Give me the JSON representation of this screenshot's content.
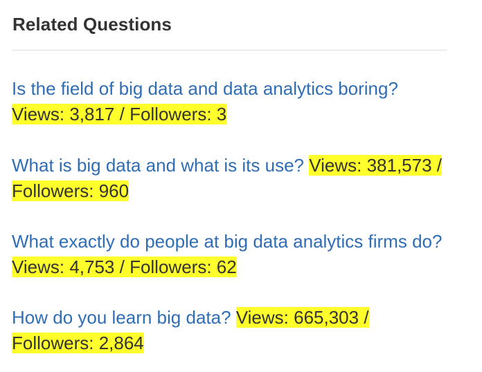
{
  "section": {
    "title": "Related Questions"
  },
  "questions": [
    {
      "title": "Is the field of big data and data analytics boring?",
      "stats": "Views: 3,817 / Followers: 3"
    },
    {
      "title": "What is big data and what is its use?",
      "stats": "Views: 381,573 / Followers: 960"
    },
    {
      "title": "What exactly do people at big data analytics firms do?",
      "stats": "Views: 4,753 / Followers: 62"
    },
    {
      "title": "How do you learn big data?",
      "stats": "Views: 665,303 / Followers: 2,864"
    }
  ],
  "colors": {
    "link": "#2f6db5",
    "highlight": "#ffff2b",
    "title_text": "#333333",
    "divider": "#dddddd"
  }
}
